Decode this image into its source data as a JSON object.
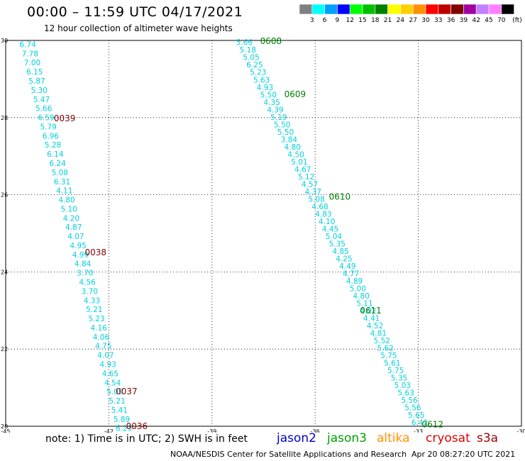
{
  "header": {
    "title": "00:00 – 11:59 UTC 04/17/2021",
    "subtitle": "12 hour collection of altimeter wave heights"
  },
  "colorbar": {
    "unit_label": "(ft)",
    "bins": [
      {
        "color": "#808080",
        "label": "3"
      },
      {
        "color": "#00ffff",
        "label": "6"
      },
      {
        "color": "#00a0ff",
        "label": "9"
      },
      {
        "color": "#0000ff",
        "label": "12"
      },
      {
        "color": "#00ff00",
        "label": "15"
      },
      {
        "color": "#00c000",
        "label": "18"
      },
      {
        "color": "#008000",
        "label": "21"
      },
      {
        "color": "#ffff00",
        "label": "24"
      },
      {
        "color": "#ffd000",
        "label": "27"
      },
      {
        "color": "#ff9000",
        "label": "30"
      },
      {
        "color": "#ff0000",
        "label": "33"
      },
      {
        "color": "#c00000",
        "label": "36"
      },
      {
        "color": "#800000",
        "label": "39"
      },
      {
        "color": "#a000a0",
        "label": "42"
      },
      {
        "color": "#c080ff",
        "label": "45"
      },
      {
        "color": "#ff80ff",
        "label": "70"
      },
      {
        "color": "#000000",
        "label": ""
      }
    ]
  },
  "map": {
    "lon_range": [
      -45,
      -30
    ],
    "lat_range": [
      20,
      30
    ],
    "x_ticks": [
      {
        "v": -45,
        "label": "-45"
      },
      {
        "v": -42,
        "label": "-42"
      },
      {
        "v": -39,
        "label": "-39"
      },
      {
        "v": -36,
        "label": "-36"
      },
      {
        "v": -33,
        "label": "-33"
      },
      {
        "v": -30,
        "label": "-30"
      }
    ],
    "y_ticks": [
      {
        "v": 20,
        "label": "20"
      },
      {
        "v": 22,
        "label": "22"
      },
      {
        "v": 24,
        "label": "24"
      },
      {
        "v": 26,
        "label": "26"
      },
      {
        "v": 28,
        "label": "28"
      },
      {
        "v": 30,
        "label": "30"
      }
    ],
    "value_color": "#00d0e0",
    "tracks": [
      {
        "color": "#00d0e0",
        "start": [
          -44.6,
          29.9
        ],
        "end": [
          -41.8,
          19.95
        ],
        "values": [
          "6.74",
          "7.78",
          "7.00",
          "6.15",
          "5.87",
          "5.30",
          "5.47",
          "5.66",
          "6.59",
          "5.79",
          "6.96",
          "5.28",
          "6.14",
          "6.24",
          "5.08",
          "6.31",
          "4.11",
          "4.80",
          "5.10",
          "4.20",
          "4.87",
          "4.07",
          "4.95",
          "4.99",
          "4.84",
          "3.70",
          "4.56",
          "3.70",
          "4.33",
          "5.21",
          "5.23",
          "4.16",
          "4.06",
          "4.75",
          "4.07",
          "4.93",
          "4.65",
          "4.54",
          "5.09",
          "5.21",
          "5.41",
          "5.89",
          "6.23"
        ]
      },
      {
        "color": "#00d0e0",
        "start": [
          -38.3,
          29.95
        ],
        "end": [
          -33.2,
          20.1
        ],
        "values": [
          "5.66",
          "5.18",
          "5.05",
          "6.25",
          "5.23",
          "5.63",
          "4.93",
          "5.50",
          "4.35",
          "4.39",
          "5.19",
          "5.50",
          "5.50",
          "3.84",
          "4.80",
          "4.50",
          "5.01",
          "4.67",
          "5.12",
          "4.57",
          "4.37",
          "5.08",
          "4.68",
          "4.83",
          "4.10",
          "4.45",
          "5.04",
          "5.35",
          "4.85",
          "4.25",
          "4.49",
          "4.77",
          "4.89",
          "5.00",
          "4.80",
          "5.11",
          "4.02",
          "4.41",
          "4.52",
          "4.81",
          "5.52",
          "5.62",
          "5.75",
          "5.61",
          "5.75",
          "5.35",
          "5.03",
          "5.63",
          "5.56",
          "5.56",
          "5.65",
          "6.42"
        ]
      }
    ],
    "time_labels": [
      {
        "text": "0039",
        "lon": -43.6,
        "lat": 27.98,
        "color": "#800000"
      },
      {
        "text": "0038",
        "lon": -42.7,
        "lat": 24.5,
        "color": "#800000"
      },
      {
        "text": "0037",
        "lon": -41.8,
        "lat": 20.9,
        "color": "#800000"
      },
      {
        "text": "0036",
        "lon": -41.5,
        "lat": 20.0,
        "color": "#800000"
      },
      {
        "text": "0608",
        "lon": -37.6,
        "lat": 29.98,
        "color": "#008000"
      },
      {
        "text": "0609",
        "lon": -36.9,
        "lat": 28.6,
        "color": "#008000"
      },
      {
        "text": "0610",
        "lon": -35.6,
        "lat": 25.95,
        "color": "#008000"
      },
      {
        "text": "0611",
        "lon": -34.7,
        "lat": 23.0,
        "color": "#008000"
      },
      {
        "text": "0612",
        "lon": -32.9,
        "lat": 20.05,
        "color": "#008000"
      }
    ]
  },
  "footer": {
    "note": "note: 1) Time is in UTC; 2) SWH is in feet",
    "legend": [
      {
        "text": "jason2",
        "color": "#0000d0"
      },
      {
        "text": "jason3",
        "color": "#00a000"
      },
      {
        "text": "altika",
        "color": "#ff9000"
      },
      {
        "text": "cryosat",
        "color": "#e00000"
      },
      {
        "text": "s3a",
        "color": "#a00000"
      }
    ],
    "credit": "NOAA/NESDIS Center for Satellite Applications and Research",
    "timestamp": "Apr 20 08:27:20 UTC 2021"
  }
}
